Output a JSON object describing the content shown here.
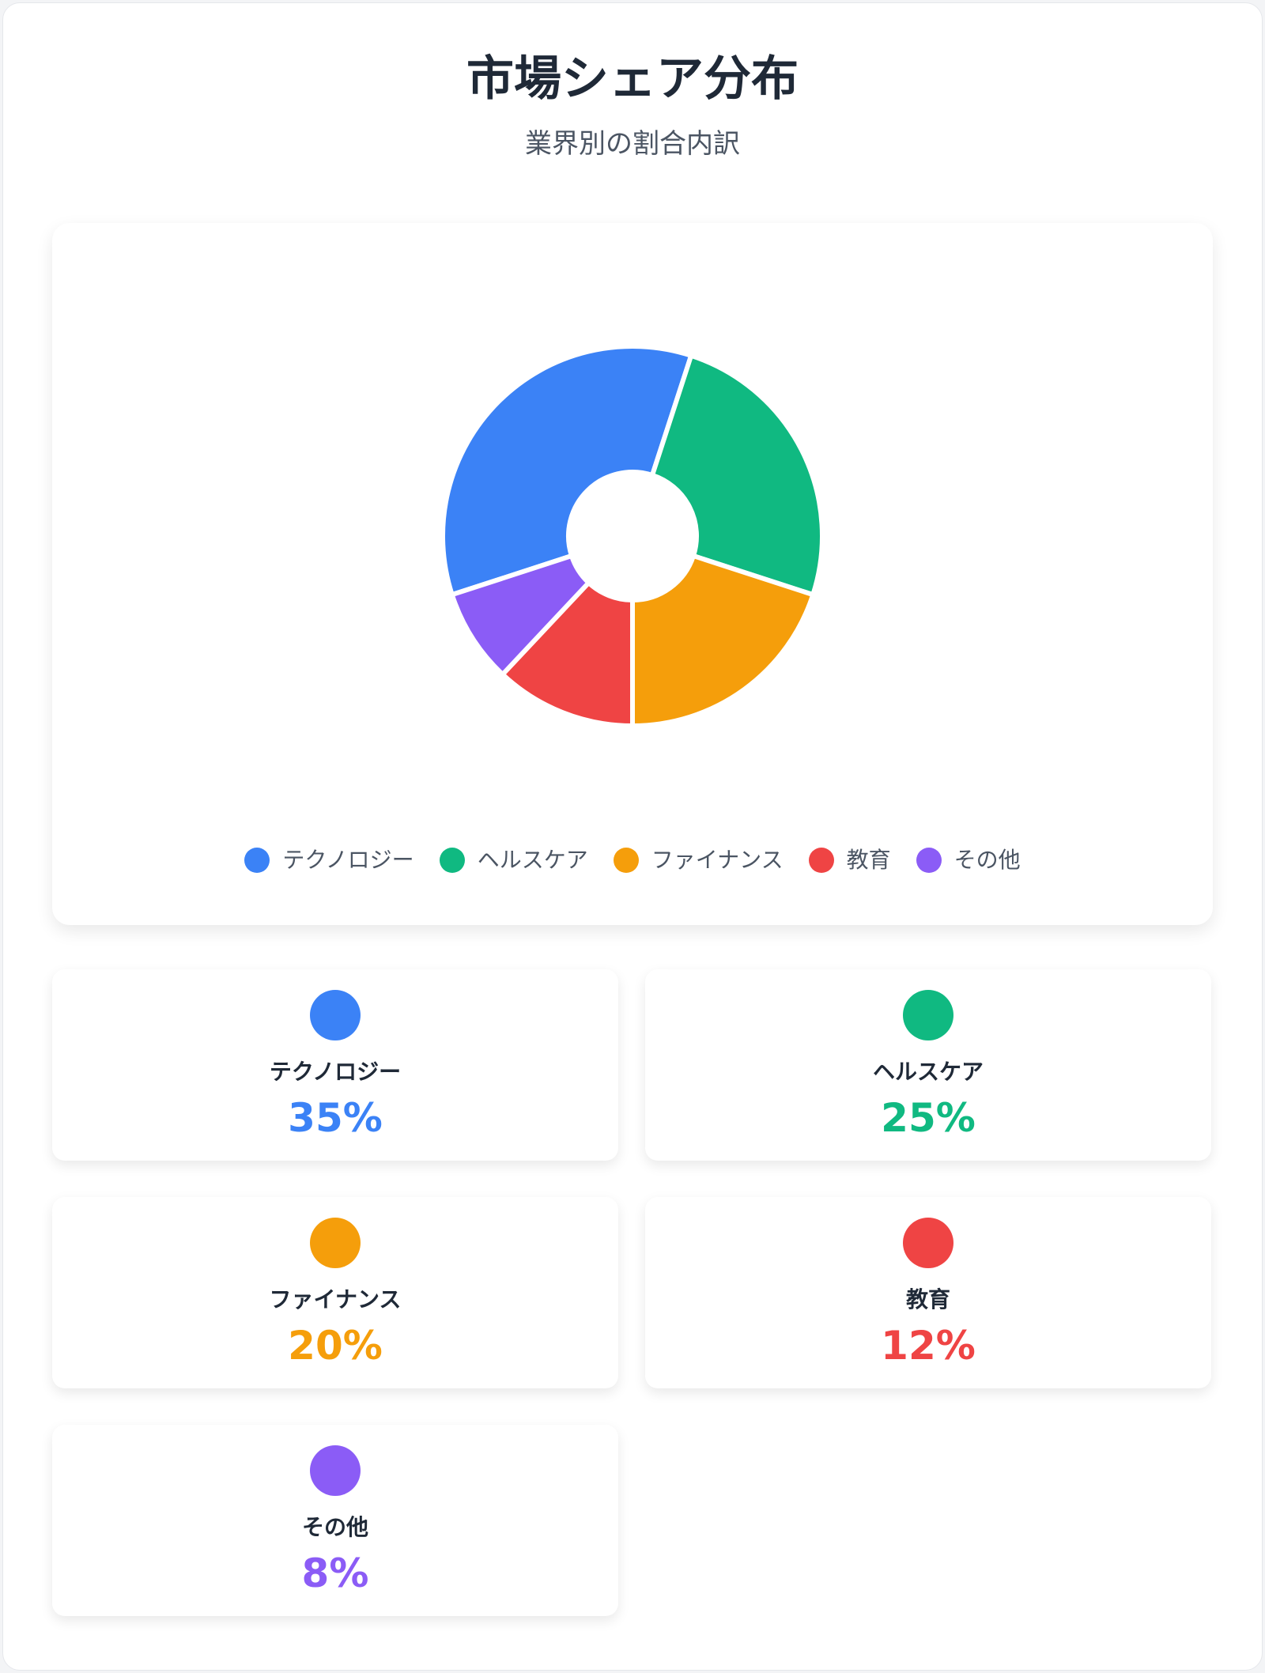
{
  "header": {
    "title": "市場シェア分布",
    "subtitle": "業界別の割合内訳"
  },
  "chart_data": {
    "type": "pie",
    "donut": true,
    "categories": [
      "テクノロジー",
      "ヘルスケア",
      "ファイナンス",
      "教育",
      "その他"
    ],
    "values": [
      35,
      25,
      20,
      12,
      8
    ],
    "unit": "%",
    "colors": [
      "#3b82f6",
      "#10b981",
      "#f59e0b",
      "#ef4444",
      "#8b5cf6"
    ],
    "legend_position": "bottom"
  },
  "cards": [
    {
      "label": "テクノロジー",
      "value": "35%",
      "color": "#3b82f6"
    },
    {
      "label": "ヘルスケア",
      "value": "25%",
      "color": "#10b981"
    },
    {
      "label": "ファイナンス",
      "value": "20%",
      "color": "#f59e0b"
    },
    {
      "label": "教育",
      "value": "12%",
      "color": "#ef4444"
    },
    {
      "label": "その他",
      "value": "8%",
      "color": "#8b5cf6"
    }
  ]
}
